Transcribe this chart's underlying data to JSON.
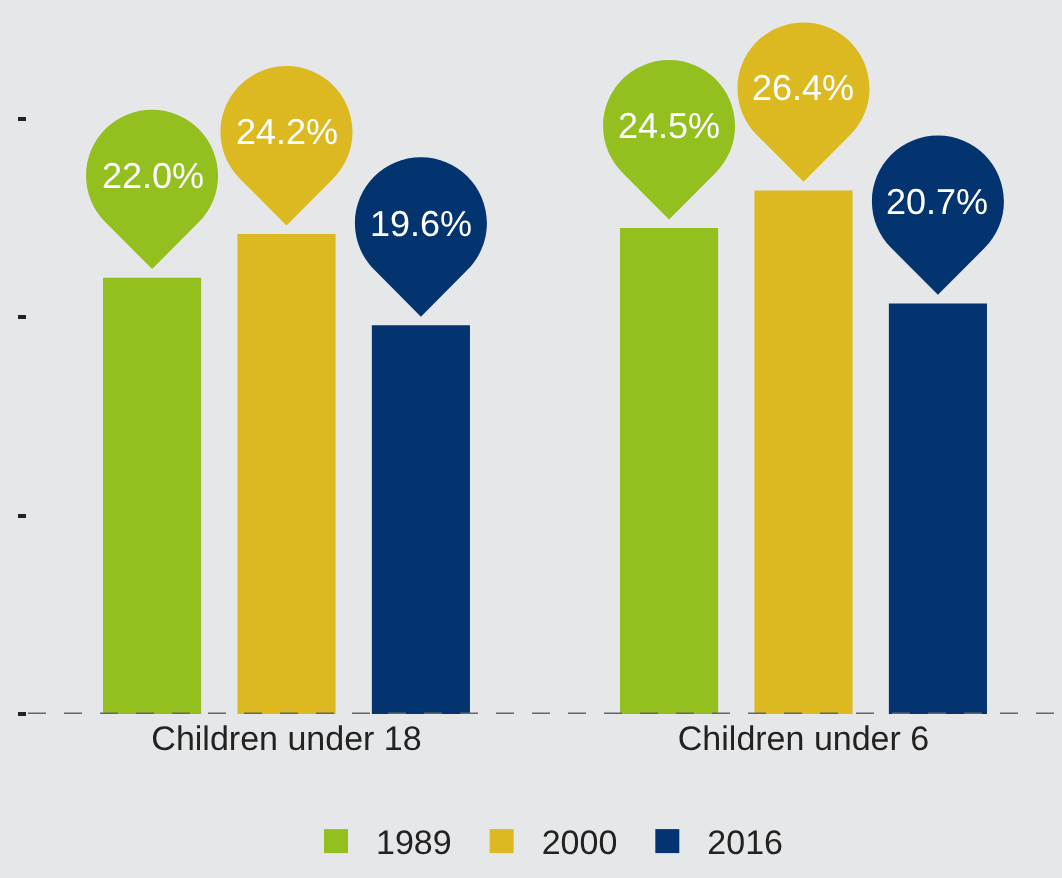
{
  "chart_data": {
    "type": "bar",
    "categories": [
      "Children under 18",
      "Children under 6"
    ],
    "series": [
      {
        "name": "1989",
        "color": "#93bf1f",
        "values": [
          22.0,
          24.5
        ],
        "value_labels": [
          "22.0%",
          "24.5%"
        ]
      },
      {
        "name": "2000",
        "color": "#dcb920",
        "values": [
          24.2,
          26.4
        ],
        "value_labels": [
          "24.2%",
          "26.4%"
        ]
      },
      {
        "name": "2016",
        "color": "#03346f",
        "values": [
          19.6,
          20.7
        ],
        "value_labels": [
          "19.6%",
          "20.7%"
        ]
      }
    ],
    "ylim": [
      0,
      36
    ],
    "yticks": [
      {
        "value": 0,
        "label": null
      },
      {
        "value": 10,
        "label": null
      },
      {
        "value": 20,
        "label": null
      },
      {
        "value": 30,
        "label": null
      }
    ],
    "tick_labels": "x",
    "legend": "bottom",
    "ref_lines": [
      {
        "axis": "y",
        "value": 0,
        "color": "#666666",
        "line_style": "dashed"
      }
    ]
  }
}
